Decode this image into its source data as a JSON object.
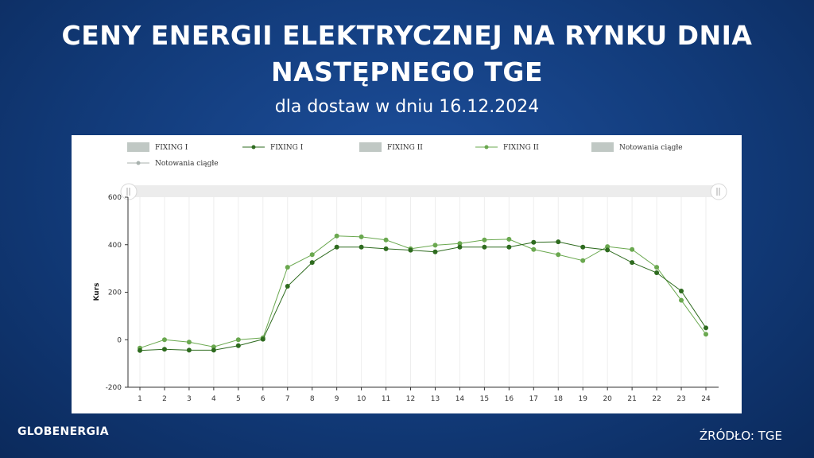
{
  "header": {
    "title_line1": "CENY ENERGII ELEKTRYCZNEJ NA RYNKU DNIA",
    "title_line2": "NASTĘPNEGO TGE",
    "subtitle": "dla dostaw w dniu 16.12.2024"
  },
  "footer": {
    "logo": "GLOBENERGIA",
    "source": "ŹRÓDŁO: TGE"
  },
  "chart_data": {
    "type": "line",
    "title": "",
    "xlabel": "",
    "ylabel": "Kurs",
    "ylim": [
      -200,
      600
    ],
    "yticks": [
      -200,
      0,
      200,
      400,
      600
    ],
    "categories": [
      "1",
      "2",
      "3",
      "4",
      "5",
      "6",
      "7",
      "8",
      "9",
      "10",
      "11",
      "12",
      "13",
      "14",
      "15",
      "16",
      "17",
      "18",
      "19",
      "20",
      "21",
      "22",
      "23",
      "24"
    ],
    "grid": "vertical",
    "legend_placement": "top",
    "legend": [
      {
        "label": "FIXING I",
        "kind": "bar",
        "color": "#c0c8c4"
      },
      {
        "label": "FIXING I",
        "kind": "line",
        "color": "#2e6b1f"
      },
      {
        "label": "FIXING II",
        "kind": "bar",
        "color": "#c0c8c4"
      },
      {
        "label": "FIXING II",
        "kind": "line",
        "color": "#6aa84f"
      },
      {
        "label": "Notowania ciągłe",
        "kind": "bar",
        "color": "#c0c8c4"
      },
      {
        "label": "Notowania ciągłe",
        "kind": "line",
        "color": "#a8b2ae"
      }
    ],
    "series": [
      {
        "name": "FIXING I",
        "color": "#2e6b1f",
        "values": [
          -45,
          -40,
          -44,
          -44,
          -25,
          2,
          225,
          325,
          390,
          390,
          383,
          377,
          370,
          390,
          390,
          390,
          410,
          412,
          390,
          378,
          325,
          282,
          205,
          50
        ]
      },
      {
        "name": "FIXING II",
        "color": "#6aa84f",
        "values": [
          -35,
          0,
          -10,
          -30,
          0,
          8,
          305,
          358,
          437,
          433,
          420,
          383,
          398,
          405,
          420,
          423,
          380,
          358,
          333,
          392,
          380,
          305,
          166,
          23
        ]
      }
    ]
  }
}
